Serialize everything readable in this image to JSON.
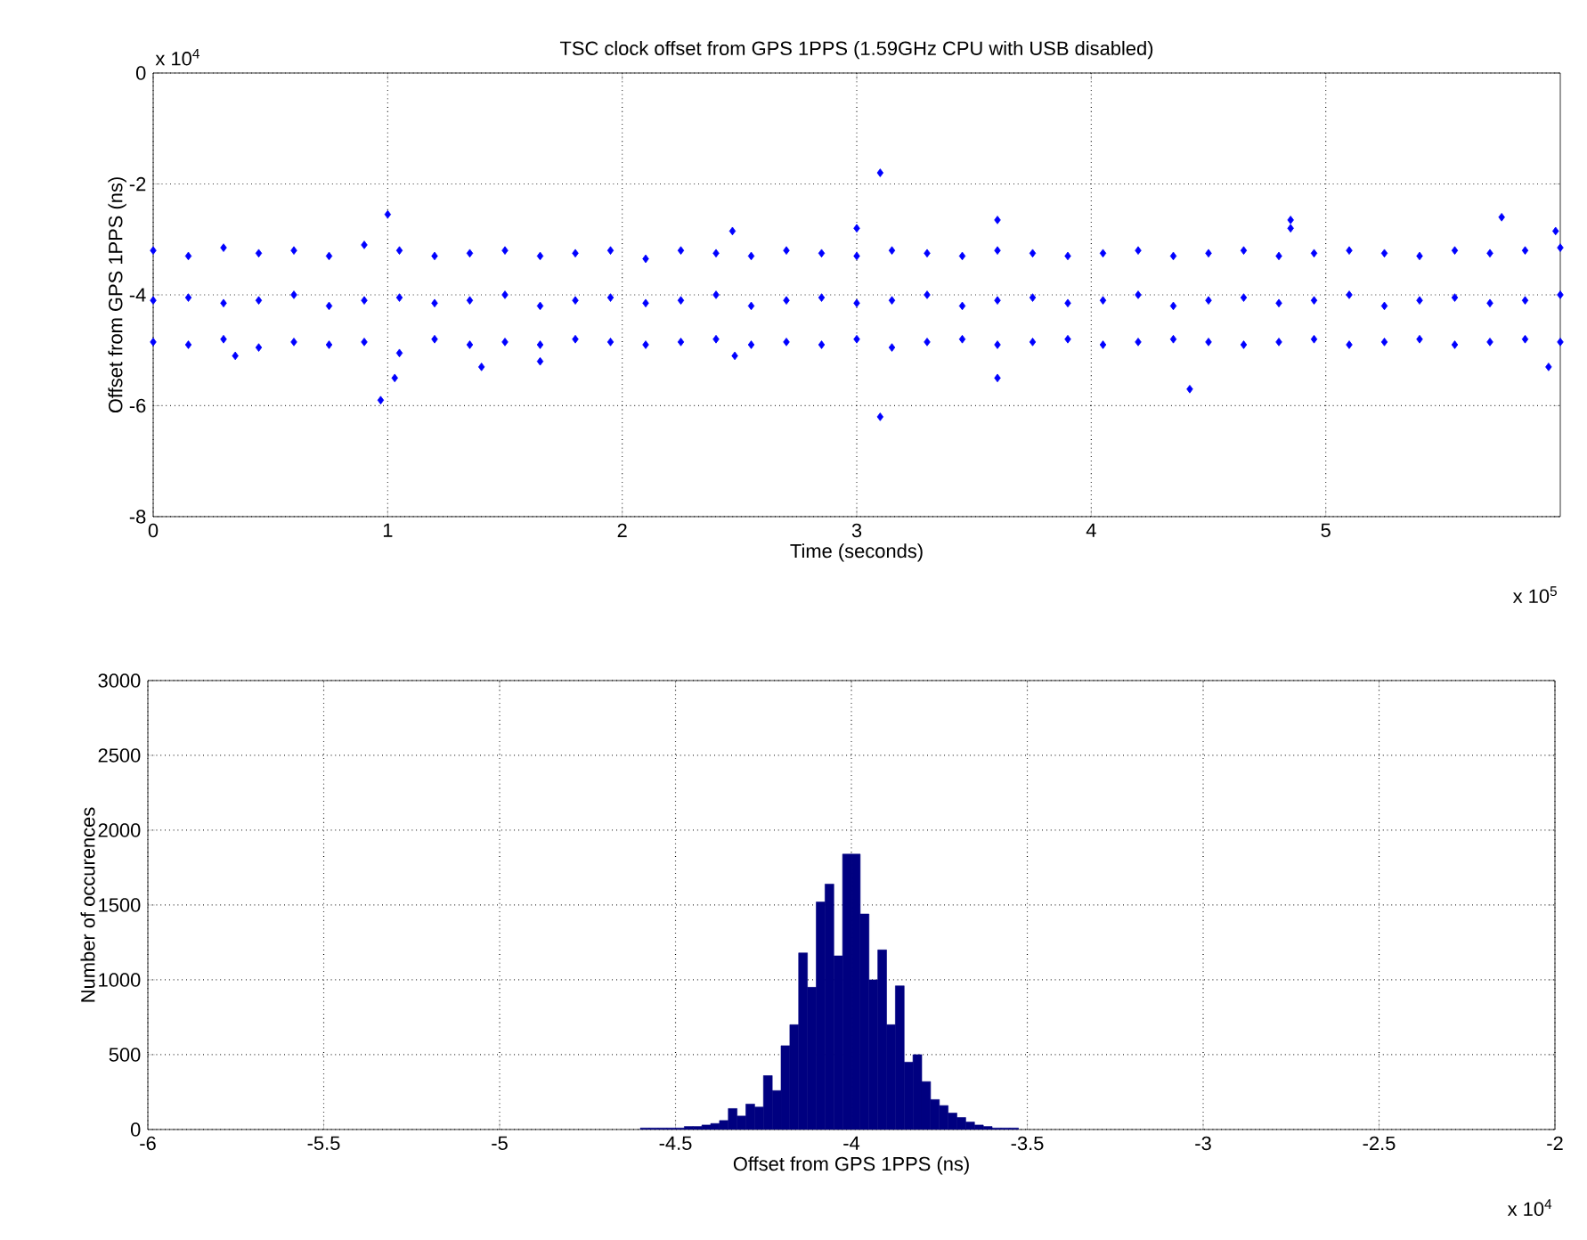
{
  "chart_data": [
    {
      "type": "scatter",
      "title": "TSC clock offset from GPS 1PPS (1.59GHz CPU with USB disabled)",
      "xlabel": "Time (seconds)",
      "ylabel": "Offset from GPS 1PPS (ns)",
      "annotations": [
        "x 10$^{4}$",
        "x 10$^{5}$"
      ],
      "marker": "diamond",
      "grid": true,
      "xlim": [
        0,
        6
      ],
      "ylim": [
        -8,
        0
      ],
      "xticks": [
        0,
        1,
        2,
        3,
        4,
        5
      ],
      "yticks": [
        -8,
        -6,
        -4,
        -2,
        0
      ],
      "series": [
        {
          "color": "#0000ff",
          "x": [
            0,
            0.15,
            0.3,
            0.45,
            0.6,
            0.75,
            0.9,
            1.05,
            1.2,
            1.35,
            1.5,
            1.65,
            1.8,
            1.95,
            2.1,
            2.25,
            2.4,
            2.55,
            2.7,
            2.85,
            3,
            3.15,
            3.3,
            3.45,
            3.6,
            3.75,
            3.9,
            4.05,
            4.2,
            4.35,
            4.5,
            4.65,
            4.8,
            4.95,
            5.1,
            5.25,
            5.4,
            5.55,
            5.7,
            5.85,
            6,
            0,
            0.15,
            0.3,
            0.45,
            0.6,
            0.75,
            0.9,
            1.05,
            1.2,
            1.35,
            1.5,
            1.65,
            1.8,
            1.95,
            2.1,
            2.25,
            2.4,
            2.55,
            2.7,
            2.85,
            3,
            3.15,
            3.3,
            3.45,
            3.6,
            3.75,
            3.9,
            4.05,
            4.2,
            4.35,
            4.5,
            4.65,
            4.8,
            4.95,
            5.1,
            5.25,
            5.4,
            5.55,
            5.7,
            5.85,
            6,
            0,
            0.15,
            0.3,
            0.45,
            0.6,
            0.75,
            0.9,
            1.05,
            1.2,
            1.35,
            1.5,
            1.65,
            1.8,
            1.95,
            2.1,
            2.25,
            2.4,
            2.55,
            2.7,
            2.85,
            3,
            3.15,
            3.3,
            3.45,
            3.6,
            3.75,
            3.9,
            4.05,
            4.2,
            4.35,
            4.5,
            4.65,
            4.8,
            4.95,
            5.1,
            5.25,
            5.4,
            5.55,
            5.7,
            5.85,
            6,
            3.1,
            3.1,
            0.97,
            1,
            3.6,
            3.6,
            4.42,
            4.85,
            4.85,
            5.75,
            5.98,
            5.95,
            1.4,
            0.35,
            2.48,
            3,
            2.47,
            1.03,
            1.65
          ],
          "values": [
            -3.2,
            -3.3,
            -3.15,
            -3.25,
            -3.2,
            -3.3,
            -3.1,
            -3.2,
            -3.3,
            -3.25,
            -3.2,
            -3.3,
            -3.25,
            -3.2,
            -3.35,
            -3.2,
            -3.25,
            -3.3,
            -3.2,
            -3.25,
            -3.3,
            -3.2,
            -3.25,
            -3.3,
            -3.2,
            -3.25,
            -3.3,
            -3.25,
            -3.2,
            -3.3,
            -3.25,
            -3.2,
            -3.3,
            -3.25,
            -3.2,
            -3.25,
            -3.3,
            -3.2,
            -3.25,
            -3.2,
            -3.15,
            -4.85,
            -4.9,
            -4.8,
            -4.95,
            -4.85,
            -4.9,
            -4.85,
            -5.05,
            -4.8,
            -4.9,
            -4.85,
            -4.9,
            -4.8,
            -4.85,
            -4.9,
            -4.85,
            -4.8,
            -4.9,
            -4.85,
            -4.9,
            -4.8,
            -4.95,
            -4.85,
            -4.8,
            -4.9,
            -4.85,
            -4.8,
            -4.9,
            -4.85,
            -4.8,
            -4.85,
            -4.9,
            -4.85,
            -4.8,
            -4.9,
            -4.85,
            -4.8,
            -4.9,
            -4.85,
            -4.8,
            -4.85,
            -4.1,
            -4.05,
            -4.15,
            -4.1,
            -4,
            -4.2,
            -4.1,
            -4.05,
            -4.15,
            -4.1,
            -4,
            -4.2,
            -4.1,
            -4.05,
            -4.15,
            -4.1,
            -4,
            -4.2,
            -4.1,
            -4.05,
            -4.15,
            -4.1,
            -4,
            -4.2,
            -4.1,
            -4.05,
            -4.15,
            -4.1,
            -4,
            -4.2,
            -4.1,
            -4.05,
            -4.15,
            -4.1,
            -4,
            -4.2,
            -4.1,
            -4.05,
            -4.15,
            -4.1,
            -4,
            -1.8,
            -6.2,
            -5.9,
            -2.55,
            -2.65,
            -5.5,
            -5.7,
            -2.65,
            -2.8,
            -2.6,
            -2.85,
            -5.3,
            -5.3,
            -5.1,
            -5.1,
            -2.8,
            -2.85,
            -5.5,
            -5.2
          ]
        }
      ]
    },
    {
      "type": "histogram",
      "xlabel": "Offset from GPS 1PPS (ns)",
      "ylabel": "Number of occurences",
      "annotations": [
        "x 10$^{4}$"
      ],
      "grid": true,
      "color": "#000080",
      "xlim": [
        -6,
        -2
      ],
      "ylim": [
        0,
        3000
      ],
      "xticks": [
        -6,
        -5.5,
        -5,
        -4.5,
        -4,
        -3.5,
        -3,
        -2.5,
        -2
      ],
      "yticks": [
        0,
        500,
        1000,
        1500,
        2000,
        2500,
        3000
      ],
      "bins": [
        -4.6,
        -4.575,
        -4.55,
        -4.525,
        -4.5,
        -4.475,
        -4.45,
        -4.425,
        -4.4,
        -4.375,
        -4.35,
        -4.325,
        -4.3,
        -4.275,
        -4.25,
        -4.225,
        -4.2,
        -4.175,
        -4.15,
        -4.125,
        -4.1,
        -4.075,
        -4.05,
        -4.025,
        -4,
        -3.975,
        -3.95,
        -3.925,
        -3.9,
        -3.875,
        -3.85,
        -3.825,
        -3.8,
        -3.775,
        -3.75,
        -3.725,
        -3.7,
        -3.675,
        -3.65,
        -3.625,
        -3.6,
        -3.575,
        -3.55,
        -3.525
      ],
      "values": [
        10,
        10,
        10,
        10,
        10,
        20,
        20,
        30,
        40,
        60,
        140,
        90,
        170,
        150,
        360,
        260,
        560,
        700,
        1180,
        950,
        1520,
        1640,
        1160,
        1840,
        1840,
        1440,
        1000,
        1200,
        700,
        960,
        450,
        500,
        320,
        200,
        160,
        110,
        80,
        50,
        30,
        20,
        10,
        10,
        10
      ]
    }
  ]
}
